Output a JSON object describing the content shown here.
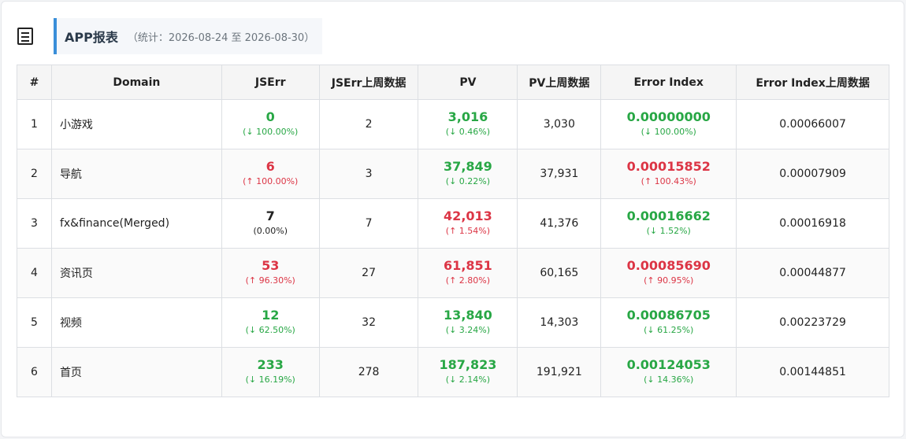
{
  "header": {
    "icon": "document-list-icon",
    "title": "APP报表",
    "subtitle": "（统计：2026-08-24 至 2026-08-30）"
  },
  "table": {
    "columns": [
      "#",
      "Domain",
      "JSErr",
      "JSErr上周数据",
      "PV",
      "PV上周数据",
      "Error Index",
      "Error Index上周数据"
    ],
    "rows": [
      {
        "no": "1",
        "domain": "小游戏",
        "jserr": "0",
        "jserr_delta": "(↓ 100.00%)",
        "jserr_color": "green",
        "jserr_prev": "2",
        "pv": "3,016",
        "pv_delta": "(↓ 0.46%)",
        "pv_color": "green",
        "pv_prev": "3,030",
        "ei": "0.00000000",
        "ei_delta": "(↓ 100.00%)",
        "ei_color": "green",
        "ei_prev": "0.00066007"
      },
      {
        "no": "2",
        "domain": "导航",
        "jserr": "6",
        "jserr_delta": "(↑ 100.00%)",
        "jserr_color": "red",
        "jserr_prev": "3",
        "pv": "37,849",
        "pv_delta": "(↓ 0.22%)",
        "pv_color": "green",
        "pv_prev": "37,931",
        "ei": "0.00015852",
        "ei_delta": "(↑ 100.43%)",
        "ei_color": "red",
        "ei_prev": "0.00007909"
      },
      {
        "no": "3",
        "domain": "fx&finance(Merged)",
        "jserr": "7",
        "jserr_delta": "(0.00%)",
        "jserr_color": "neutral",
        "jserr_prev": "7",
        "pv": "42,013",
        "pv_delta": "(↑ 1.54%)",
        "pv_color": "red",
        "pv_prev": "41,376",
        "ei": "0.00016662",
        "ei_delta": "(↓ 1.52%)",
        "ei_color": "green",
        "ei_prev": "0.00016918"
      },
      {
        "no": "4",
        "domain": "资讯页",
        "jserr": "53",
        "jserr_delta": "(↑ 96.30%)",
        "jserr_color": "red",
        "jserr_prev": "27",
        "pv": "61,851",
        "pv_delta": "(↑ 2.80%)",
        "pv_color": "red",
        "pv_prev": "60,165",
        "ei": "0.00085690",
        "ei_delta": "(↑ 90.95%)",
        "ei_color": "red",
        "ei_prev": "0.00044877"
      },
      {
        "no": "5",
        "domain": "视频",
        "jserr": "12",
        "jserr_delta": "(↓ 62.50%)",
        "jserr_color": "green",
        "jserr_prev": "32",
        "pv": "13,840",
        "pv_delta": "(↓ 3.24%)",
        "pv_color": "green",
        "pv_prev": "14,303",
        "ei": "0.00086705",
        "ei_delta": "(↓ 61.25%)",
        "ei_color": "green",
        "ei_prev": "0.00223729"
      },
      {
        "no": "6",
        "domain": "首页",
        "jserr": "233",
        "jserr_delta": "(↓ 16.19%)",
        "jserr_color": "green",
        "jserr_prev": "278",
        "pv": "187,823",
        "pv_delta": "(↓ 2.14%)",
        "pv_color": "green",
        "pv_prev": "191,921",
        "ei": "0.00124053",
        "ei_delta": "(↓ 14.36%)",
        "ei_color": "green",
        "ei_prev": "0.00144851"
      }
    ]
  },
  "colors": {
    "up": "#dc3545",
    "down": "#28a745",
    "accent": "#3a8fd9"
  }
}
